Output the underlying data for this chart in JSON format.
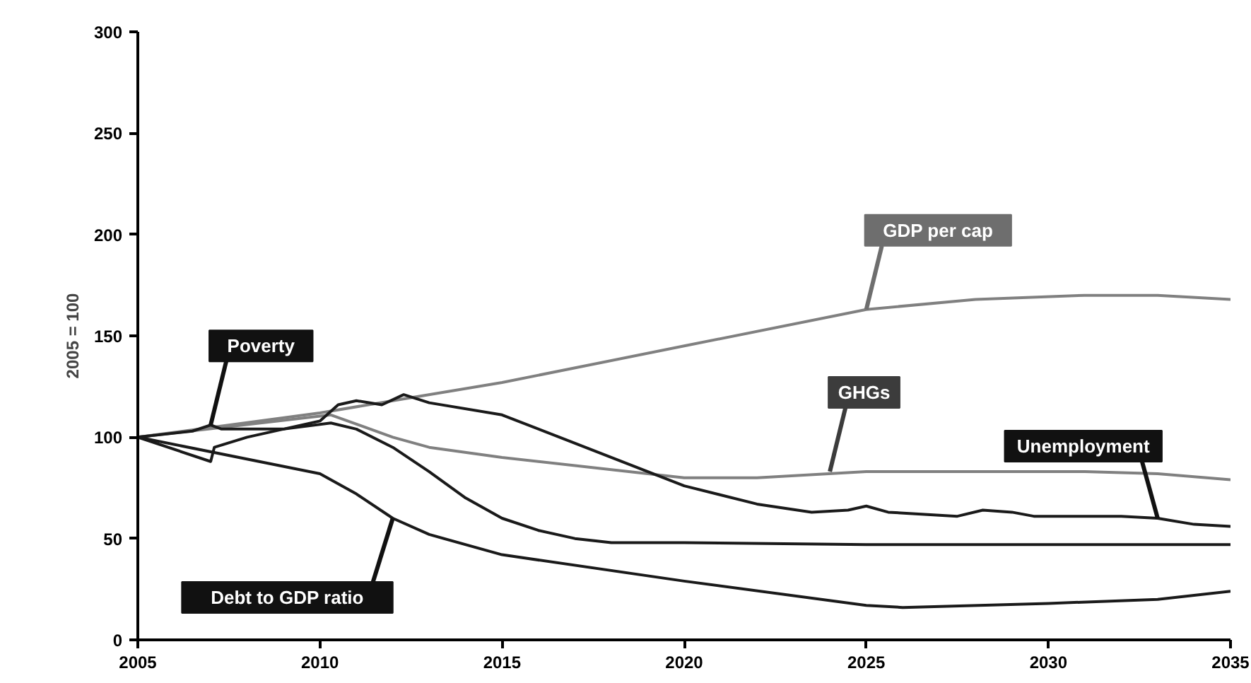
{
  "chart_data": {
    "type": "line",
    "ylabel": "2005 = 100",
    "xlim": [
      2005,
      2035
    ],
    "ylim": [
      0,
      300
    ],
    "xticks": [
      2005,
      2010,
      2015,
      2020,
      2025,
      2030,
      2035
    ],
    "yticks": [
      0,
      50,
      100,
      150,
      200,
      250,
      300
    ],
    "grid": false,
    "marker": "none",
    "line_style": "solid",
    "series": [
      {
        "color": "#808080",
        "x": [
          2005,
          2010,
          2012,
          2015,
          2020,
          2025,
          2028,
          2031,
          2033,
          2035
        ],
        "values": [
          100,
          112,
          118,
          127,
          145,
          163,
          168,
          170,
          170,
          168
        ]
      },
      {
        "color": "#808080",
        "x": [
          2005,
          2010.3,
          2012,
          2013,
          2015,
          2018,
          2020,
          2022,
          2025,
          2028,
          2031,
          2033,
          2035
        ],
        "values": [
          100,
          111,
          100,
          95,
          90,
          84,
          80,
          80,
          83,
          83,
          83,
          82,
          79
        ]
      },
      {
        "color": "#1a1a1a",
        "x": [
          2005,
          2006.5,
          2007,
          2007.3,
          2009,
          2010.3,
          2011,
          2012,
          2013,
          2014,
          2015,
          2016,
          2017,
          2018,
          2020,
          2025,
          2030,
          2035
        ],
        "values": [
          100,
          103,
          106,
          104,
          104,
          107,
          104,
          95,
          83,
          70,
          60,
          54,
          50,
          48,
          48,
          47,
          47,
          47
        ]
      },
      {
        "color": "#1a1a1a",
        "x": [
          2005,
          2007,
          2007.1,
          2008,
          2009,
          2010,
          2010.5,
          2011,
          2011.7,
          2012.3,
          2013,
          2015,
          2017,
          2020,
          2022,
          2023.5,
          2024.5,
          2025,
          2025.6,
          2027.5,
          2028.2,
          2029,
          2029.6,
          2032,
          2033,
          2034,
          2035
        ],
        "values": [
          100,
          88,
          95,
          100,
          104,
          108,
          116,
          118,
          116,
          121,
          117,
          111,
          97,
          76,
          67,
          63,
          64,
          66,
          63,
          61,
          64,
          63,
          61,
          61,
          60,
          57,
          56
        ]
      },
      {
        "color": "#1a1a1a",
        "x": [
          2005,
          2010,
          2011,
          2012,
          2013,
          2015,
          2020,
          2025,
          2026,
          2030,
          2033,
          2035
        ],
        "values": [
          100,
          82,
          72,
          60,
          52,
          42,
          29,
          17,
          16,
          18,
          20,
          24
        ]
      }
    ],
    "annotations": [
      {
        "text": "GDP per cap",
        "x": 2025,
        "y": 163
      },
      {
        "text": "GHGs",
        "x": 2024,
        "y": 83
      },
      {
        "text": "Poverty",
        "x": 2007,
        "y": 106
      },
      {
        "text": "Unemployment",
        "x": 2033,
        "y": 60
      },
      {
        "text": "Debt to GDP ratio",
        "x": 2012,
        "y": 60
      }
    ]
  }
}
